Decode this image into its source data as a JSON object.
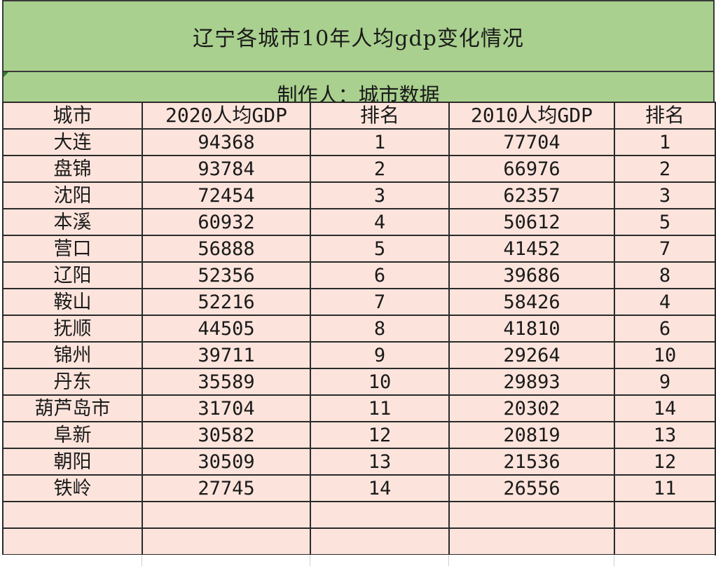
{
  "title": "辽宁各城市10年人均gdp变化情况",
  "subtitle": "制作人：城市数据",
  "colors": {
    "header_fill": "#a9d08e",
    "cell_fill": "#fce4dc",
    "grid_line": "#2a2a2a"
  },
  "table": {
    "columns": [
      "城市",
      "2020人均GDP",
      "排名",
      "2010人均GDP",
      "排名"
    ],
    "rows": [
      [
        "大连",
        "94368",
        "1",
        "77704",
        "1"
      ],
      [
        "盘锦",
        "93784",
        "2",
        "66976",
        "2"
      ],
      [
        "沈阳",
        "72454",
        "3",
        "62357",
        "3"
      ],
      [
        "本溪",
        "60932",
        "4",
        "50612",
        "5"
      ],
      [
        "营口",
        "56888",
        "5",
        "41452",
        "7"
      ],
      [
        "辽阳",
        "52356",
        "6",
        "39686",
        "8"
      ],
      [
        "鞍山",
        "52216",
        "7",
        "58426",
        "4"
      ],
      [
        "抚顺",
        "44505",
        "8",
        "41810",
        "6"
      ],
      [
        "锦州",
        "39711",
        "9",
        "29264",
        "10"
      ],
      [
        "丹东",
        "35589",
        "10",
        "29893",
        "9"
      ],
      [
        "葫芦岛市",
        "31704",
        "11",
        "20302",
        "14"
      ],
      [
        "阜新",
        "30582",
        "12",
        "20819",
        "13"
      ],
      [
        "朝阳",
        "30509",
        "13",
        "21536",
        "12"
      ],
      [
        "铁岭",
        "27745",
        "14",
        "26556",
        "11"
      ]
    ]
  }
}
